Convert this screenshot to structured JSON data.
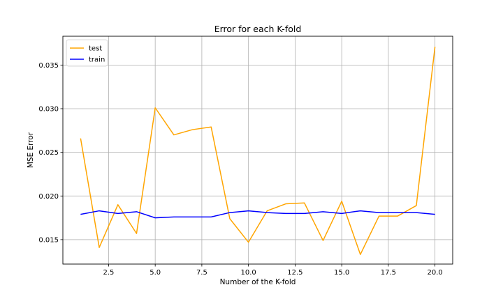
{
  "chart_data": {
    "type": "line",
    "title": "Error for each K-fold",
    "xlabel": "Number of the K-fold",
    "ylabel": "MSE Error",
    "xlim": [
      0.05,
      20.95
    ],
    "ylim": [
      0.0122,
      0.0383
    ],
    "xticks": [
      2.5,
      5.0,
      7.5,
      10.0,
      12.5,
      15.0,
      17.5,
      20.0
    ],
    "xtick_labels": [
      "2.5",
      "5.0",
      "7.5",
      "10.0",
      "12.5",
      "15.0",
      "17.5",
      "20.0"
    ],
    "yticks": [
      0.015,
      0.02,
      0.025,
      0.03,
      0.035
    ],
    "ytick_labels": [
      "0.015",
      "0.020",
      "0.025",
      "0.030",
      "0.035"
    ],
    "grid": true,
    "legend_position": "top-left",
    "x": [
      1,
      2,
      3,
      4,
      5,
      6,
      7,
      8,
      9,
      10,
      11,
      12,
      13,
      14,
      15,
      16,
      17,
      18,
      19,
      20
    ],
    "series": [
      {
        "name": "test",
        "color": "#ffa500",
        "values": [
          0.0266,
          0.0141,
          0.019,
          0.0157,
          0.0301,
          0.027,
          0.0276,
          0.0279,
          0.0174,
          0.0147,
          0.0183,
          0.0191,
          0.0192,
          0.0149,
          0.0194,
          0.0133,
          0.0177,
          0.0177,
          0.0189,
          0.0371
        ]
      },
      {
        "name": "train",
        "color": "#0000ff",
        "values": [
          0.0179,
          0.0183,
          0.018,
          0.0182,
          0.0175,
          0.0176,
          0.0176,
          0.0176,
          0.0181,
          0.0183,
          0.0181,
          0.018,
          0.018,
          0.0182,
          0.018,
          0.0183,
          0.0181,
          0.0181,
          0.0181,
          0.0179
        ]
      }
    ]
  }
}
